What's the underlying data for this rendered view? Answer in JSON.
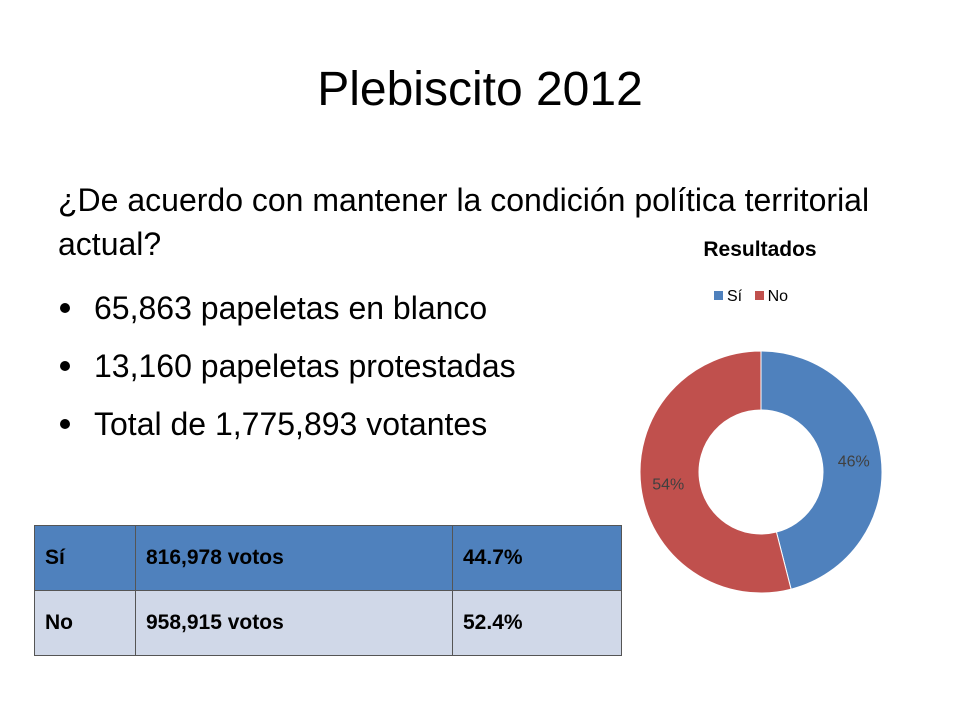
{
  "title": "Plebiscito 2012",
  "question": "¿De acuerdo con mantener la condición política territorial actual?",
  "bullets": [
    "65,863 papeletas en blanco",
    "13,160 papeletas protestadas",
    "Total de 1,775,893 votantes"
  ],
  "table": {
    "rows": [
      {
        "option": "Sí",
        "votes": "816,978 votos",
        "percent": "44.7%"
      },
      {
        "option": "No",
        "votes": "958,915 votos",
        "percent": "52.4%"
      }
    ]
  },
  "chart_data": {
    "type": "pie",
    "style": "donut",
    "title": "Resultados",
    "legend_position": "top",
    "categories": [
      "Sí",
      "No"
    ],
    "values": [
      46,
      54
    ],
    "data_labels": [
      "46%",
      "54%"
    ],
    "colors": [
      "#4f81bd",
      "#c0504d"
    ]
  }
}
